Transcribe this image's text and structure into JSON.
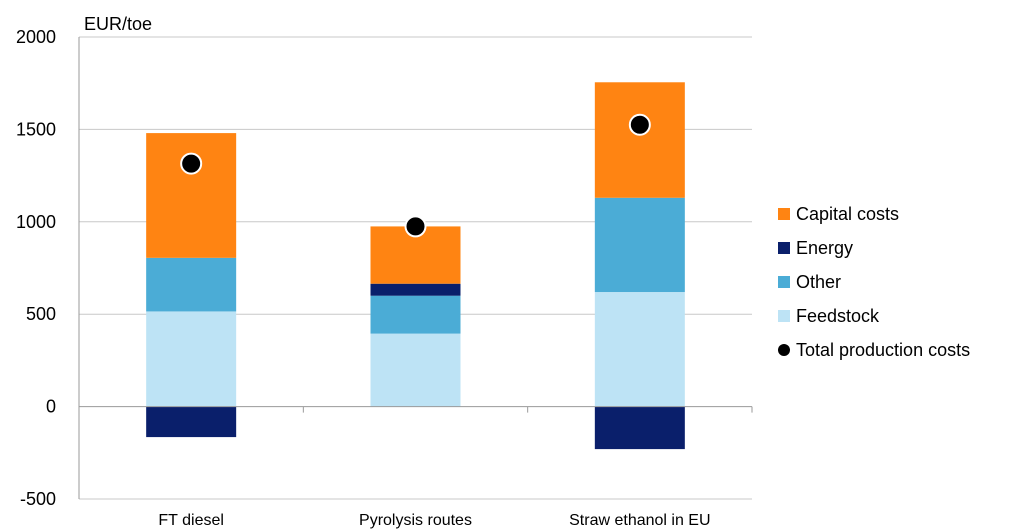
{
  "chart_data": {
    "type": "bar",
    "stacked": true,
    "title": "",
    "ylabel": "EUR/toe",
    "xlabel": "",
    "ylim": [
      -500,
      2000
    ],
    "yticks": [
      -500,
      0,
      500,
      1000,
      1500,
      2000
    ],
    "grid": true,
    "legend_position": "right",
    "categories": [
      "FT diesel",
      "Pyrolysis routes",
      "Straw ethanol in EU"
    ],
    "series": [
      {
        "name": "Feedstock",
        "color": "#BDE3F5",
        "values": [
          515,
          395,
          620
        ]
      },
      {
        "name": "Other",
        "color": "#4BACD6",
        "values": [
          290,
          205,
          510
        ]
      },
      {
        "name": "Energy",
        "color": "#0A1F6B",
        "values": [
          -165,
          65,
          -230
        ]
      },
      {
        "name": "Capital costs",
        "color": "#FF8412",
        "values": [
          675,
          310,
          625
        ]
      }
    ],
    "total": {
      "name": "Total production costs",
      "color": "#000000",
      "values": [
        1315,
        975,
        1525
      ]
    },
    "legend_order": [
      "Capital costs",
      "Energy",
      "Other",
      "Feedstock",
      "Total production costs"
    ]
  }
}
